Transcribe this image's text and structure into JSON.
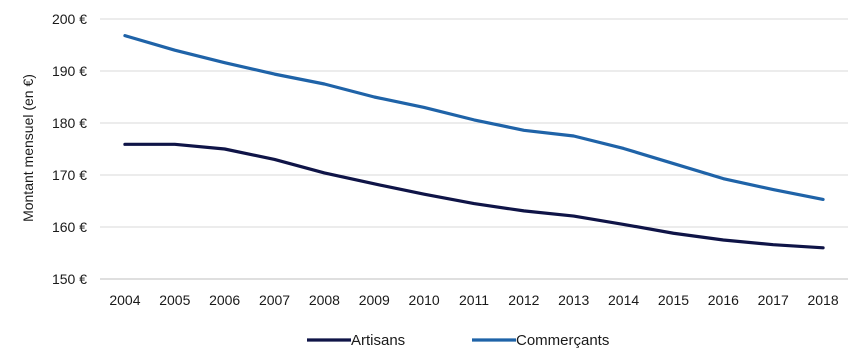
{
  "chart_data": {
    "type": "line",
    "x": [
      "2004",
      "2005",
      "2006",
      "2007",
      "2008",
      "2009",
      "2010",
      "2011",
      "2012",
      "2013",
      "2014",
      "2015",
      "2016",
      "2017",
      "2018"
    ],
    "series": [
      {
        "name": "Artisans",
        "color": "#0f1447",
        "values": [
          175.9,
          175.9,
          175.0,
          173.0,
          170.4,
          168.3,
          166.3,
          164.5,
          163.1,
          162.1,
          160.5,
          158.8,
          157.5,
          156.6,
          156.0
        ]
      },
      {
        "name": "Commerçants",
        "color": "#1f63a8",
        "values": [
          196.8,
          194.0,
          191.6,
          189.4,
          187.5,
          185.0,
          183.0,
          180.6,
          178.6,
          177.5,
          175.1,
          172.2,
          169.3,
          167.2,
          165.3
        ]
      }
    ],
    "yticks": [
      "150 €",
      "160 €",
      "170 €",
      "180 €",
      "190 €",
      "200 €"
    ],
    "ylim": [
      150,
      200
    ],
    "ylabel": "Montant mensuel (en €)",
    "xlabel": "",
    "grid": true,
    "legend_position": "bottom"
  }
}
